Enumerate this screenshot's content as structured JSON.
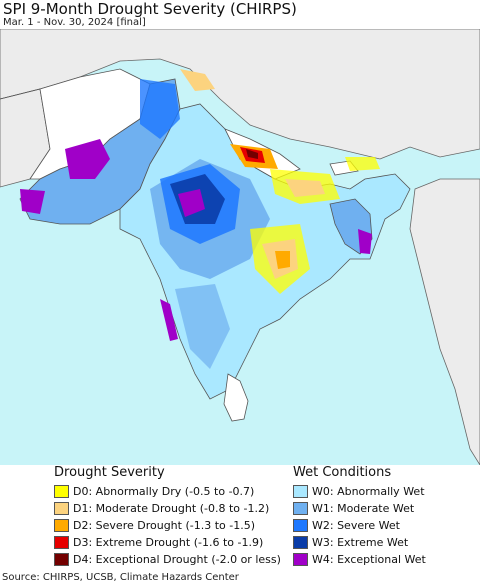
{
  "title": "SPI 9-Month Drought Severity (CHIRPS)",
  "subtitle": "Mar. 1 - Nov. 30, 2024 [final]",
  "map": {
    "region": "South Asia",
    "colors": {
      "ocean": "#c8f4f8",
      "land_other": "#ececec",
      "land_normal": "#ffffff",
      "border": "#555555"
    }
  },
  "legend": {
    "drought": {
      "heading": "Drought Severity",
      "items": [
        {
          "label": "D0: Abnormally Dry (-0.5 to -0.7)",
          "color": "#ffff00"
        },
        {
          "label": "D1: Moderate Drought (-0.8 to -1.2)",
          "color": "#fcd37f"
        },
        {
          "label": "D2: Severe Drought (-1.3 to -1.5)",
          "color": "#ffaa00"
        },
        {
          "label": "D3: Extreme Drought (-1.6 to -1.9)",
          "color": "#e60000"
        },
        {
          "label": "D4: Exceptional Drought (-2.0 or less)",
          "color": "#730000"
        }
      ]
    },
    "wet": {
      "heading": "Wet Conditions",
      "items": [
        {
          "label": "W0: Abnormally Wet",
          "color": "#aae8ff"
        },
        {
          "label": "W1: Moderate Wet",
          "color": "#6fb0f0"
        },
        {
          "label": "W2: Severe Wet",
          "color": "#1e78ff"
        },
        {
          "label": "W3: Extreme Wet",
          "color": "#0a3ca8"
        },
        {
          "label": "W4: Exceptional Wet",
          "color": "#a000c8"
        }
      ]
    }
  },
  "source": "Source: CHIRPS, UCSB, Climate Hazards Center"
}
